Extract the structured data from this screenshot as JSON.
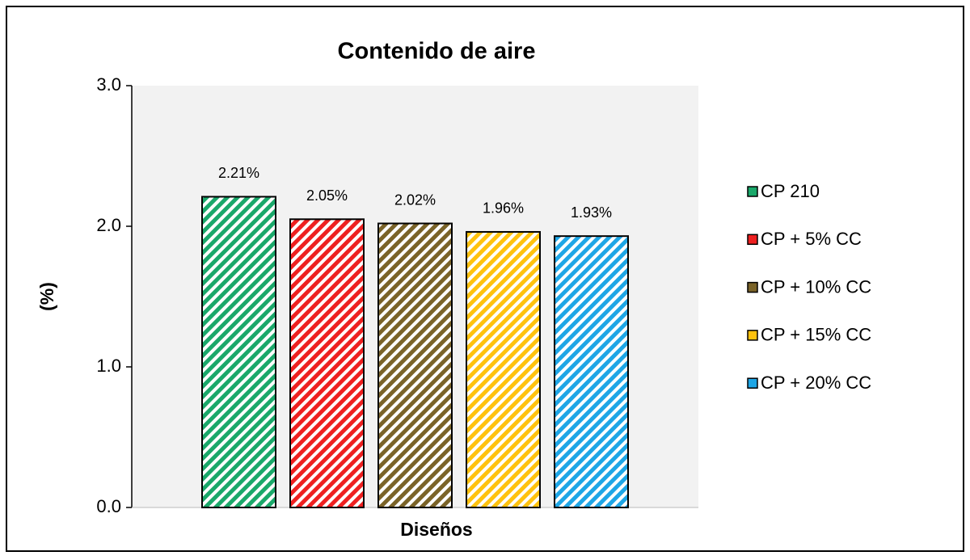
{
  "chart_data": {
    "type": "bar",
    "title": "Contenido de aire",
    "x_label": "Diseños",
    "y_label": "(%)",
    "ylim": [
      0,
      3
    ],
    "yticks": [
      {
        "value": 0,
        "label": "0.0"
      },
      {
        "value": 1,
        "label": "1.0"
      },
      {
        "value": 2,
        "label": "2.0"
      },
      {
        "value": 3,
        "label": "3.0"
      }
    ],
    "series": [
      {
        "name": "CP 210",
        "color": "#1aa86a",
        "values": [
          2.21
        ],
        "value_labels": [
          "2.21%"
        ]
      },
      {
        "name": "CP + 5% CC",
        "color": "#ee2020",
        "values": [
          2.05
        ],
        "value_labels": [
          "2.05%"
        ]
      },
      {
        "name": "CP + 10% CC",
        "color": "#7a6328",
        "values": [
          2.02
        ],
        "value_labels": [
          "2.02%"
        ]
      },
      {
        "name": "CP + 15% CC",
        "color": "#ffc20e",
        "values": [
          1.96
        ],
        "value_labels": [
          "1.96%"
        ]
      },
      {
        "name": "CP + 20% CC",
        "color": "#1ea6e6",
        "values": [
          1.93
        ],
        "value_labels": [
          "1.93%"
        ]
      }
    ]
  }
}
